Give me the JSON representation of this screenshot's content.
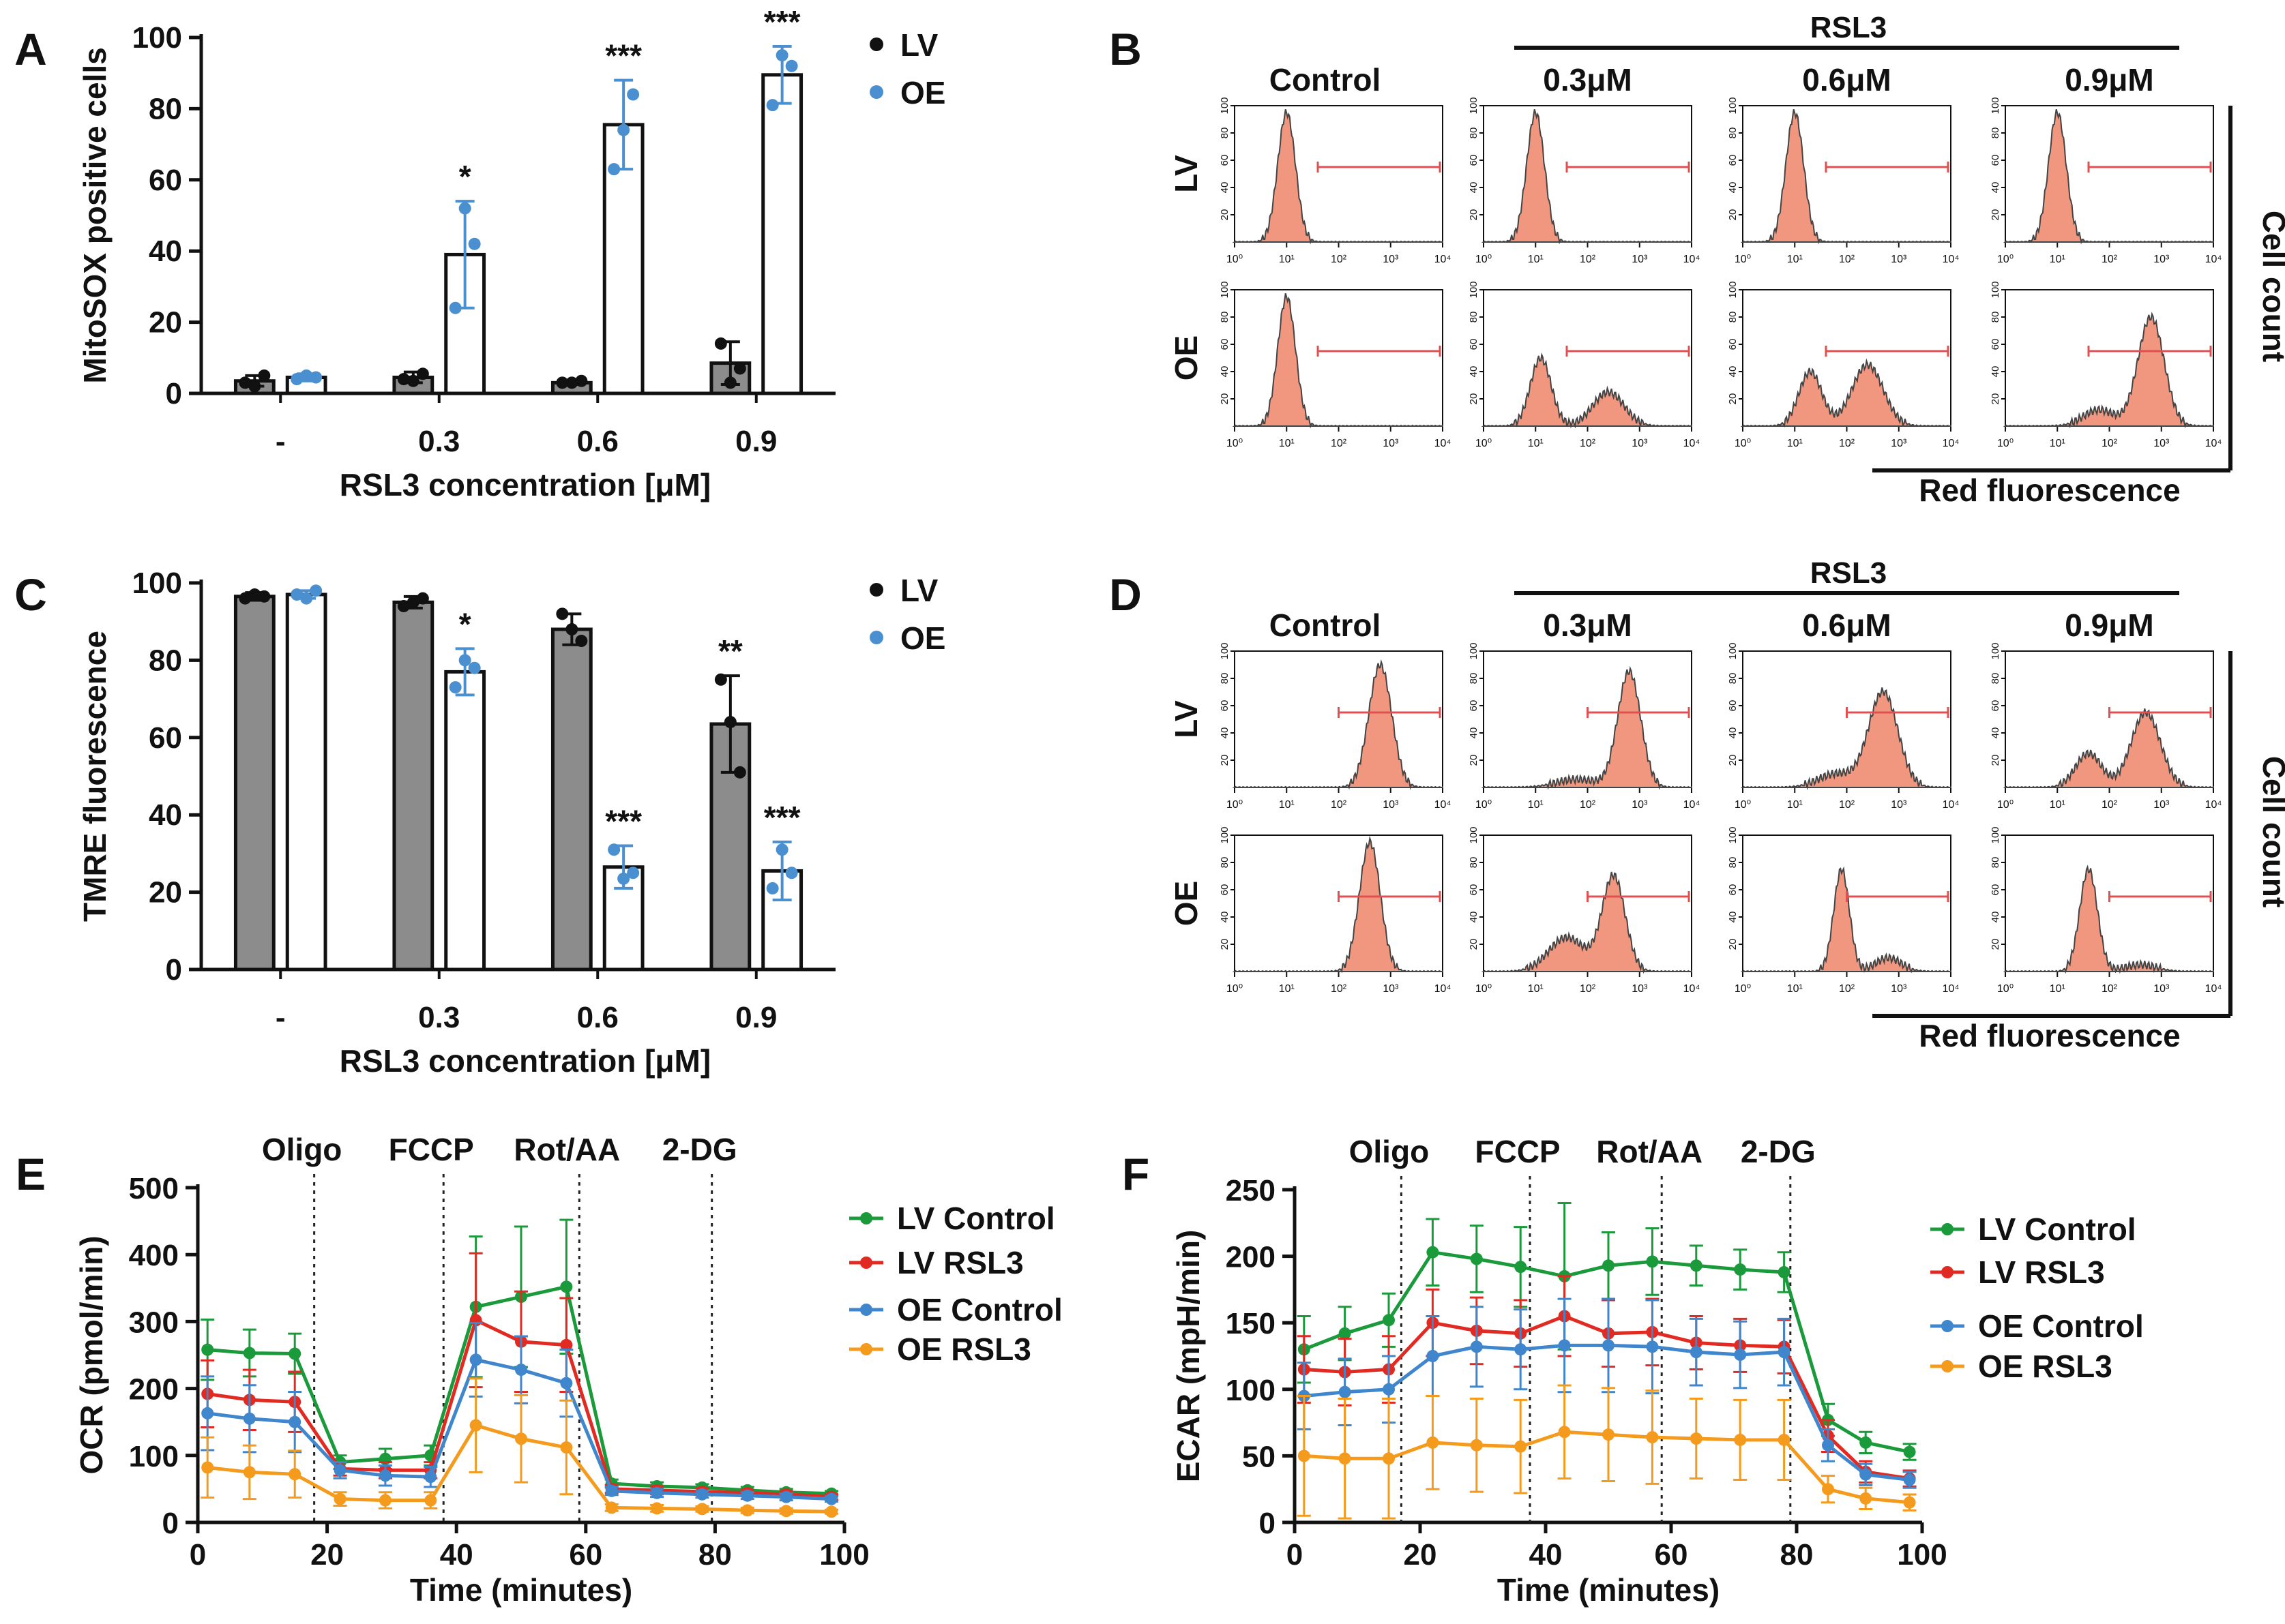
{
  "colors": {
    "lv": "#111111",
    "oe": "#4a8fd0",
    "hist_fill": "#f1977f",
    "hist_stroke": "#444444",
    "gate": "#e05050",
    "bar_lv": "#8c8c8c",
    "bar_oe": "#ffffff",
    "green": "#1a9a3a",
    "red": "#e02a22",
    "blue": "#3f86cc",
    "orange": "#f49a1c"
  },
  "chart_data": [
    {
      "panel": "A",
      "type": "bar",
      "ylabel": "MitoSOX positive cells",
      "xlabel": "RSL3 concentration [μM]",
      "ylim": [
        0,
        100
      ],
      "yticks": [
        0,
        20,
        40,
        60,
        80,
        100
      ],
      "categories": [
        "-",
        "0.3",
        "0.6",
        "0.9"
      ],
      "legend": [
        "LV",
        "OE"
      ],
      "series": [
        {
          "name": "LV",
          "values": [
            3.5,
            4.5,
            3,
            8.5
          ],
          "sd": [
            1.5,
            1.5,
            0.5,
            6
          ],
          "points": [
            [
              3,
              2,
              5
            ],
            [
              4,
              3.5,
              5.5
            ],
            [
              3,
              3,
              3.5
            ],
            [
              14,
              3,
              7
            ]
          ]
        },
        {
          "name": "OE",
          "values": [
            4.5,
            39,
            75.5,
            89.5
          ],
          "sd": [
            1,
            15,
            12.5,
            8
          ],
          "points": [
            [
              4,
              5,
              4.5
            ],
            [
              24,
              52,
              42
            ],
            [
              63,
              74,
              84
            ],
            [
              81,
              95,
              92
            ]
          ]
        }
      ],
      "significance": [
        "",
        "*",
        "***",
        "***"
      ]
    },
    {
      "panel": "C",
      "type": "bar",
      "ylabel": "TMRE fluorescence",
      "xlabel": "RSL3 concentration [μM]",
      "ylim": [
        0,
        100
      ],
      "yticks": [
        0,
        20,
        40,
        60,
        80,
        100
      ],
      "categories": [
        "-",
        "0.3",
        "0.6",
        "0.9"
      ],
      "legend": [
        "LV",
        "OE"
      ],
      "series": [
        {
          "name": "LV",
          "values": [
            96.5,
            95,
            88,
            63.5
          ],
          "sd": [
            1,
            1.5,
            4,
            12.5
          ],
          "points": [
            [
              96,
              97,
              96.5
            ],
            [
              94,
              95,
              96
            ],
            [
              92,
              88,
              85
            ],
            [
              75,
              64,
              51
            ]
          ]
        },
        {
          "name": "OE",
          "values": [
            97,
            77,
            26.5,
            25.5
          ],
          "sd": [
            1,
            6,
            5.5,
            7.5
          ],
          "points": [
            [
              97,
              96,
              98
            ],
            [
              73,
              80,
              78
            ],
            [
              31,
              23.5,
              25
            ],
            [
              21,
              31,
              25
            ]
          ]
        }
      ],
      "significance": [
        "",
        "*",
        "***",
        "**|***"
      ]
    },
    {
      "panel": "B",
      "type": "histogram_grid",
      "header": "RSL3",
      "columns": [
        "Control",
        "0.3μM",
        "0.6μM",
        "0.9μM"
      ],
      "rows": [
        "LV",
        "OE"
      ],
      "xlabel": "Red fluorescence",
      "ylabel": "Cell count",
      "xticks": [
        "10⁰",
        "10¹",
        "10²",
        "10³",
        "10⁴"
      ],
      "yticks": [
        "20",
        "40",
        "60",
        "80",
        "100"
      ],
      "gate": [
        1.6,
        4.0
      ],
      "peaks": [
        [
          [
            [
              1,
              0.95,
              0.17
            ]
          ],
          [
            [
              1,
              0.95,
              0.17
            ]
          ],
          [
            [
              1,
              0.95,
              0.17
            ]
          ],
          [
            [
              1,
              0.95,
              0.17
            ]
          ]
        ],
        [
          [
            [
              1,
              0.95,
              0.17
            ]
          ],
          [
            [
              1.1,
              0.5,
              0.2
            ],
            [
              2.4,
              0.25,
              0.3
            ]
          ],
          [
            [
              1.3,
              0.4,
              0.22
            ],
            [
              2.4,
              0.45,
              0.3
            ]
          ],
          [
            [
              1.8,
              0.12,
              0.3
            ],
            [
              2.8,
              0.8,
              0.25
            ]
          ]
        ]
      ]
    },
    {
      "panel": "D",
      "type": "histogram_grid",
      "header": "RSL3",
      "columns": [
        "Control",
        "0.3μM",
        "0.6μM",
        "0.9μM"
      ],
      "rows": [
        "LV",
        "OE"
      ],
      "xlabel": "Red fluorescence",
      "ylabel": "Cell count",
      "xticks": [
        "10⁰",
        "10¹",
        "10²",
        "10³",
        "10⁴"
      ],
      "yticks": [
        "20",
        "40",
        "60",
        "80",
        "100"
      ],
      "gate": [
        2.0,
        4.0
      ],
      "peaks": [
        [
          [
            [
              2.8,
              0.9,
              0.22
            ]
          ],
          [
            [
              1.8,
              0.06,
              0.4
            ],
            [
              2.8,
              0.85,
              0.22
            ]
          ],
          [
            [
              1.8,
              0.1,
              0.35
            ],
            [
              2.7,
              0.7,
              0.28
            ]
          ],
          [
            [
              1.6,
              0.25,
              0.25
            ],
            [
              2.7,
              0.55,
              0.28
            ]
          ]
        ],
        [
          [
            [
              2.6,
              0.95,
              0.2
            ]
          ],
          [
            [
              1.6,
              0.25,
              0.35
            ],
            [
              2.5,
              0.7,
              0.22
            ]
          ],
          [
            [
              1.9,
              0.75,
              0.15
            ],
            [
              2.8,
              0.1,
              0.25
            ]
          ],
          [
            [
              1.6,
              0.75,
              0.17
            ],
            [
              2.6,
              0.05,
              0.3
            ]
          ]
        ]
      ]
    },
    {
      "panel": "E",
      "type": "line",
      "xlabel": "Time (minutes)",
      "ylabel": "OCR (pmol/min)",
      "xlim": [
        0,
        100
      ],
      "ylim": [
        0,
        500
      ],
      "xticks": [
        0,
        20,
        40,
        60,
        80,
        100
      ],
      "yticks": [
        0,
        100,
        200,
        300,
        400,
        500
      ],
      "injections": [
        {
          "label": "Oligo",
          "x": 18
        },
        {
          "label": "FCCP",
          "x": 38
        },
        {
          "label": "Rot/AA",
          "x": 59
        },
        {
          "label": "2-DG",
          "x": 79.5
        }
      ],
      "x": [
        1.5,
        8,
        15,
        22,
        29,
        36,
        43,
        50,
        57,
        64,
        71,
        78,
        85,
        91,
        98
      ],
      "series": [
        {
          "name": "LV Control",
          "color": "green",
          "values": [
            258,
            253,
            252,
            90,
            95,
            100,
            322,
            337,
            352,
            58,
            54,
            52,
            48,
            45,
            43
          ],
          "err": [
            45,
            35,
            30,
            10,
            15,
            15,
            105,
            105,
            100,
            6,
            6,
            5,
            5,
            5,
            4
          ]
        },
        {
          "name": "LV RSL3",
          "color": "red",
          "values": [
            192,
            183,
            180,
            80,
            78,
            78,
            302,
            270,
            265,
            50,
            48,
            46,
            44,
            42,
            38
          ],
          "err": [
            50,
            45,
            45,
            10,
            12,
            12,
            100,
            75,
            70,
            6,
            6,
            5,
            5,
            5,
            4
          ]
        },
        {
          "name": "OE Control",
          "color": "blue",
          "values": [
            163,
            155,
            150,
            78,
            70,
            68,
            243,
            228,
            208,
            47,
            44,
            42,
            40,
            38,
            35
          ],
          "err": [
            55,
            50,
            45,
            12,
            15,
            15,
            55,
            50,
            50,
            6,
            6,
            5,
            5,
            5,
            4
          ]
        },
        {
          "name": "OE RSL3",
          "color": "orange",
          "values": [
            82,
            75,
            72,
            35,
            33,
            33,
            145,
            125,
            112,
            22,
            21,
            20,
            18,
            17,
            16
          ],
          "err": [
            45,
            40,
            35,
            10,
            12,
            12,
            70,
            65,
            70,
            5,
            5,
            4,
            4,
            4,
            3
          ]
        }
      ]
    },
    {
      "panel": "F",
      "type": "line",
      "xlabel": "Time (minutes)",
      "ylabel": "ECAR (mpH/min)",
      "xlim": [
        0,
        100
      ],
      "ylim": [
        0,
        250
      ],
      "xticks": [
        0,
        20,
        40,
        60,
        80,
        100
      ],
      "yticks": [
        0,
        50,
        100,
        150,
        200,
        250
      ],
      "injections": [
        {
          "label": "Oligo",
          "x": 17
        },
        {
          "label": "FCCP",
          "x": 37.5
        },
        {
          "label": "Rot/AA",
          "x": 58.5
        },
        {
          "label": "2-DG",
          "x": 79
        }
      ],
      "x": [
        1.5,
        8,
        15,
        22,
        29,
        36,
        43,
        50,
        57,
        64,
        71,
        78,
        85,
        91,
        98
      ],
      "series": [
        {
          "name": "LV Control",
          "color": "green",
          "values": [
            130,
            142,
            152,
            203,
            198,
            192,
            185,
            193,
            196,
            193,
            190,
            188,
            77,
            60,
            53
          ],
          "err": [
            25,
            20,
            20,
            25,
            25,
            30,
            55,
            25,
            25,
            15,
            15,
            15,
            12,
            8,
            6
          ]
        },
        {
          "name": "LV RSL3",
          "color": "red",
          "values": [
            115,
            113,
            115,
            150,
            144,
            142,
            155,
            142,
            143,
            135,
            133,
            132,
            65,
            38,
            33
          ],
          "err": [
            25,
            25,
            25,
            25,
            25,
            25,
            30,
            25,
            25,
            20,
            20,
            20,
            12,
            8,
            6
          ]
        },
        {
          "name": "OE Control",
          "color": "blue",
          "values": [
            95,
            98,
            100,
            125,
            132,
            130,
            133,
            133,
            132,
            128,
            126,
            128,
            58,
            36,
            32
          ],
          "err": [
            25,
            25,
            25,
            30,
            30,
            30,
            35,
            35,
            35,
            25,
            25,
            25,
            12,
            8,
            6
          ]
        },
        {
          "name": "OE RSL3",
          "color": "orange",
          "values": [
            50,
            48,
            48,
            60,
            58,
            57,
            68,
            66,
            64,
            63,
            62,
            62,
            25,
            18,
            15
          ],
          "err": [
            45,
            45,
            45,
            35,
            35,
            35,
            35,
            35,
            35,
            30,
            30,
            30,
            10,
            8,
            6
          ]
        }
      ]
    }
  ]
}
